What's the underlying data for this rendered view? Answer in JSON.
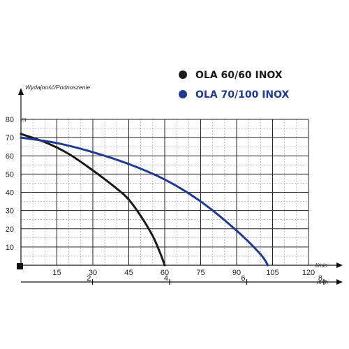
{
  "chart_data": {
    "type": "line",
    "title": "",
    "ylabel": "Wydajność/Podnoszenie",
    "y_unit": "m",
    "x_unit": "l/min",
    "x2_unit": "m³/h",
    "xlim": [
      0,
      120
    ],
    "ylim": [
      0,
      80
    ],
    "x_ticks": [
      15,
      30,
      45,
      60,
      75,
      90,
      105,
      120
    ],
    "y_ticks": [
      10,
      20,
      30,
      40,
      50,
      60,
      70,
      80
    ],
    "x2_ticks": [
      2,
      4,
      6,
      8
    ],
    "x2_range": [
      0,
      8
    ],
    "grid": true,
    "legend_position": "top-right",
    "series": [
      {
        "name": "OLA 60/60 INOX",
        "color": "#1a1a1a",
        "x": [
          0,
          10,
          20,
          30,
          40,
          45,
          50,
          55,
          58,
          60
        ],
        "y": [
          72,
          67.5,
          61,
          52,
          42,
          36,
          27,
          16,
          7,
          0
        ]
      },
      {
        "name": "OLA 70/100 INOX",
        "color": "#1f3a93",
        "x": [
          0,
          15,
          30,
          45,
          60,
          75,
          90,
          100,
          103
        ],
        "y": [
          70,
          67,
          62,
          55.5,
          47,
          35,
          19,
          6,
          0
        ]
      }
    ]
  }
}
